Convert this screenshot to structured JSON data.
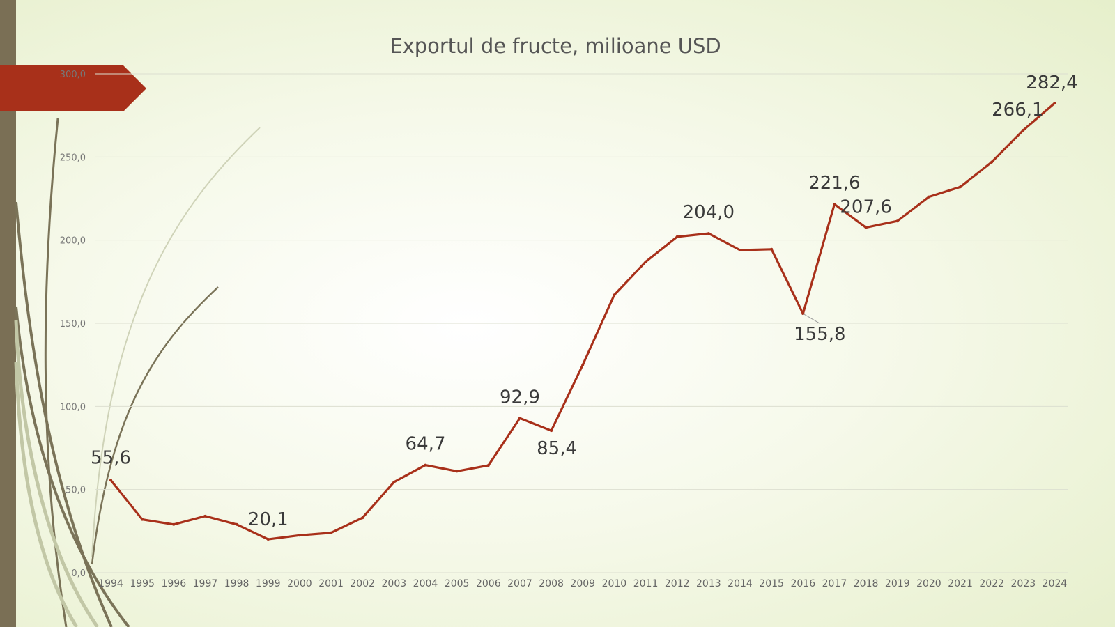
{
  "chart_data": {
    "type": "line",
    "title": "Exportul de fructe, milioane USD",
    "xlabel": "",
    "ylabel": "",
    "ylim": [
      0,
      300
    ],
    "yticks": [
      "0,0",
      "50,0",
      "100,0",
      "150,0",
      "200,0",
      "250,0",
      "300,0"
    ],
    "ytick_values": [
      0,
      50,
      100,
      150,
      200,
      250,
      300
    ],
    "grid": true,
    "legend": "none",
    "line_color": "#a8301a",
    "categories": [
      "1994",
      "1995",
      "1996",
      "1997",
      "1998",
      "1999",
      "2000",
      "2001",
      "2002",
      "2003",
      "2004",
      "2005",
      "2006",
      "2007",
      "2008",
      "2009",
      "2010",
      "2011",
      "2012",
      "2013",
      "2014",
      "2015",
      "2016",
      "2017",
      "2018",
      "2019",
      "2020",
      "2021",
      "2022",
      "2023",
      "2024"
    ],
    "series": [
      {
        "values": [
          55.6,
          32.0,
          29.0,
          34.0,
          29.0,
          20.1,
          22.5,
          24.0,
          33.0,
          54.5,
          64.7,
          61.0,
          64.5,
          92.9,
          85.4,
          125.0,
          167.0,
          187.0,
          202.0,
          204.0,
          194.0,
          194.5,
          155.8,
          221.6,
          207.6,
          211.5,
          226.0,
          232.0,
          247.0,
          266.1,
          282.4
        ]
      }
    ],
    "data_labels": [
      {
        "index": 0,
        "text": "55,6"
      },
      {
        "index": 5,
        "text": "20,1"
      },
      {
        "index": 10,
        "text": "64,7"
      },
      {
        "index": 13,
        "text": "92,9"
      },
      {
        "index": 14,
        "text": "85,4"
      },
      {
        "index": 19,
        "text": "204,0"
      },
      {
        "index": 22,
        "text": "155,8"
      },
      {
        "index": 23,
        "text": "221,6"
      },
      {
        "index": 24,
        "text": "207,6"
      },
      {
        "index": 29,
        "text": "266,1"
      },
      {
        "index": 30,
        "text": "282,4"
      }
    ]
  }
}
